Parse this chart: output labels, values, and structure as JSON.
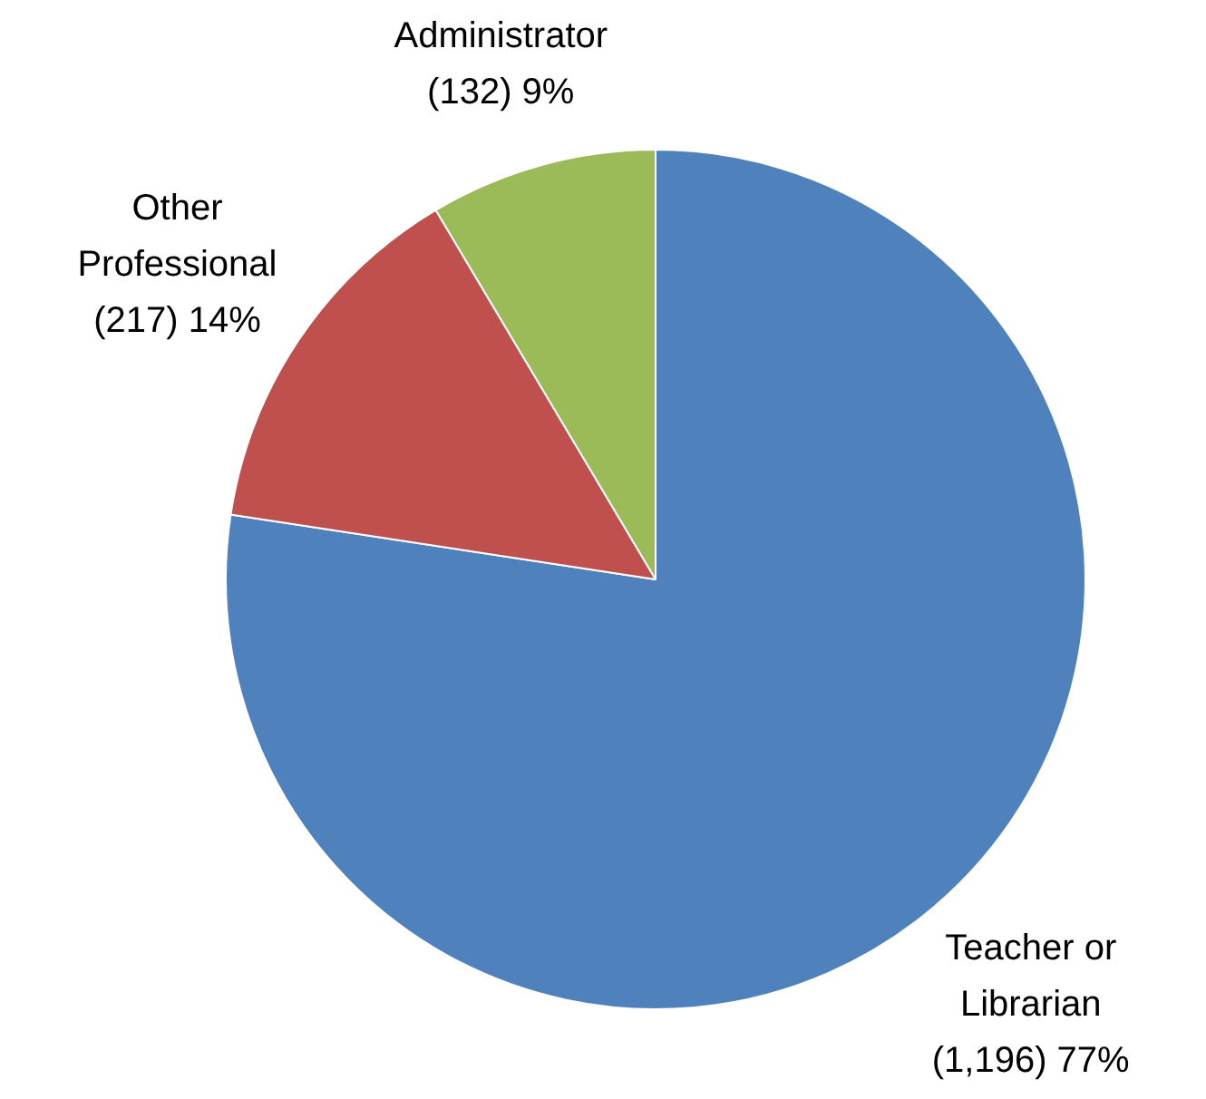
{
  "chart_data": {
    "type": "pie",
    "categories": [
      "Teacher or Librarian",
      "Other Professional",
      "Administrator"
    ],
    "values": [
      1196,
      217,
      132
    ],
    "colors": [
      "#4f81bd",
      "#c0504d",
      "#9bbb59"
    ],
    "value_labels": [
      "(1,196) 77%",
      "(217) 14%",
      "(132) 9%"
    ]
  }
}
